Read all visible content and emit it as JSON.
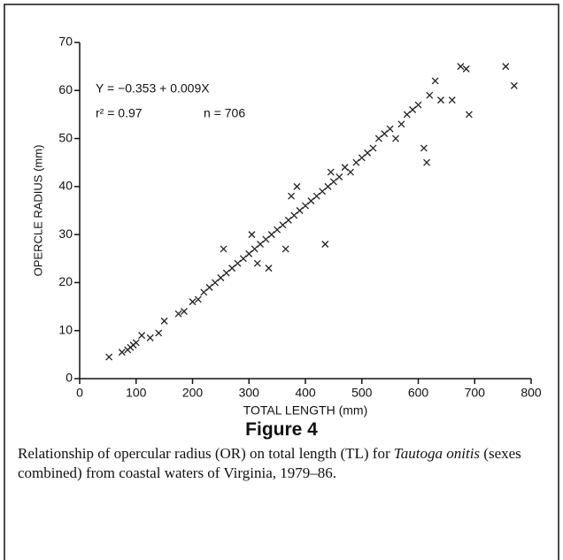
{
  "chart_data": {
    "type": "scatter",
    "figure_title": "Figure 4",
    "caption": [
      "Relationship of opercular radius (OR) on total length (TL) for ",
      "Tautoga onitis",
      " (sexes combined) from coastal waters of Virginia, 1979–86."
    ],
    "x_label": "TOTAL LENGTH (mm)",
    "y_label": "OPERCLE RADIUS (mm)",
    "annotations": [
      "Y = −0.353 + 0.009X",
      "r² = 0.97",
      "n = 706"
    ],
    "xlim": [
      0,
      800
    ],
    "xticks": [
      0,
      100,
      200,
      300,
      400,
      500,
      600,
      700,
      800
    ],
    "ylim": [
      0,
      70
    ],
    "yticks": [
      0,
      10,
      20,
      30,
      40,
      50,
      60,
      70
    ],
    "color": "#222222",
    "x": [
      52,
      75,
      85,
      90,
      95,
      100,
      110,
      125,
      140,
      150,
      175,
      185,
      200,
      210,
      220,
      230,
      240,
      250,
      255,
      260,
      270,
      280,
      290,
      300,
      305,
      310,
      315,
      320,
      330,
      335,
      340,
      350,
      360,
      365,
      370,
      375,
      380,
      385,
      390,
      400,
      410,
      420,
      430,
      435,
      440,
      445,
      450,
      460,
      470,
      480,
      490,
      500,
      510,
      520,
      530,
      540,
      550,
      560,
      570,
      580,
      590,
      600,
      610,
      615,
      620,
      630,
      640,
      660,
      675,
      685,
      690,
      755,
      770
    ],
    "y": [
      4.5,
      5.5,
      6,
      6.5,
      7,
      7.5,
      9,
      8.5,
      9.5,
      12,
      13.5,
      14,
      16,
      16.5,
      18,
      19,
      20,
      21,
      27,
      22,
      23,
      24,
      25,
      26,
      30,
      27,
      24,
      28,
      29,
      23,
      30,
      31,
      32,
      27,
      33,
      38,
      34,
      40,
      35,
      36,
      37,
      38,
      39,
      28,
      40,
      43,
      41,
      42,
      44,
      43,
      45,
      46,
      47,
      48,
      50,
      51,
      52,
      50,
      53,
      55,
      56,
      57,
      48,
      45,
      59,
      62,
      58,
      58,
      65,
      64.5,
      55,
      65,
      61
    ]
  }
}
